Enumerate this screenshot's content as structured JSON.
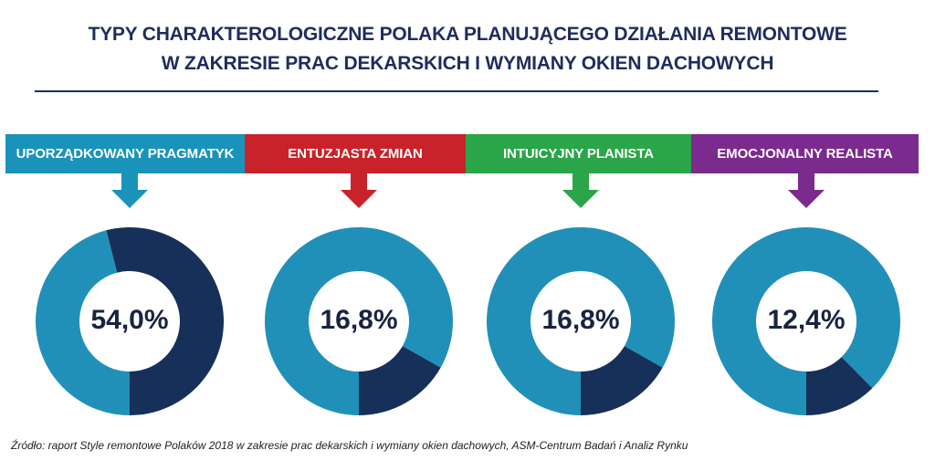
{
  "title": {
    "line1": "TYPY CHARAKTEROLOGICZNE POLAKA PLANUJĄCEGO DZIAŁANIA REMONTOWE",
    "line2": "W ZAKRESIE PRAC DEKARSKICH I WYMIANY OKIEN DACHOWYCH"
  },
  "colors": {
    "title": "#1f2d5c",
    "highlight": "#17305a",
    "remainder": "#2190b8",
    "banners": [
      "#1a93bb",
      "#c9222a",
      "#2aa548",
      "#7b2a8e"
    ]
  },
  "chart_data": {
    "type": "pie",
    "variant": "donut",
    "categories": [
      "UPORZĄDKOWANY PRAGMATYK",
      "ENTUZJASTA ZMIAN",
      "INTUICYJNY PLANISTA",
      "EMOCJONALNY REALISTA"
    ],
    "values": [
      54.0,
      16.8,
      16.8,
      12.4
    ],
    "labels": [
      "54,0%",
      "16,8%",
      "16,8%",
      "12,4%"
    ],
    "unit": "%"
  },
  "source": "Źródło: raport Style remontowe Polaków 2018 w zakresie prac dekarskich i wymiany okien dachowych,  ASM-Centrum Badań i Analiz Rynku"
}
